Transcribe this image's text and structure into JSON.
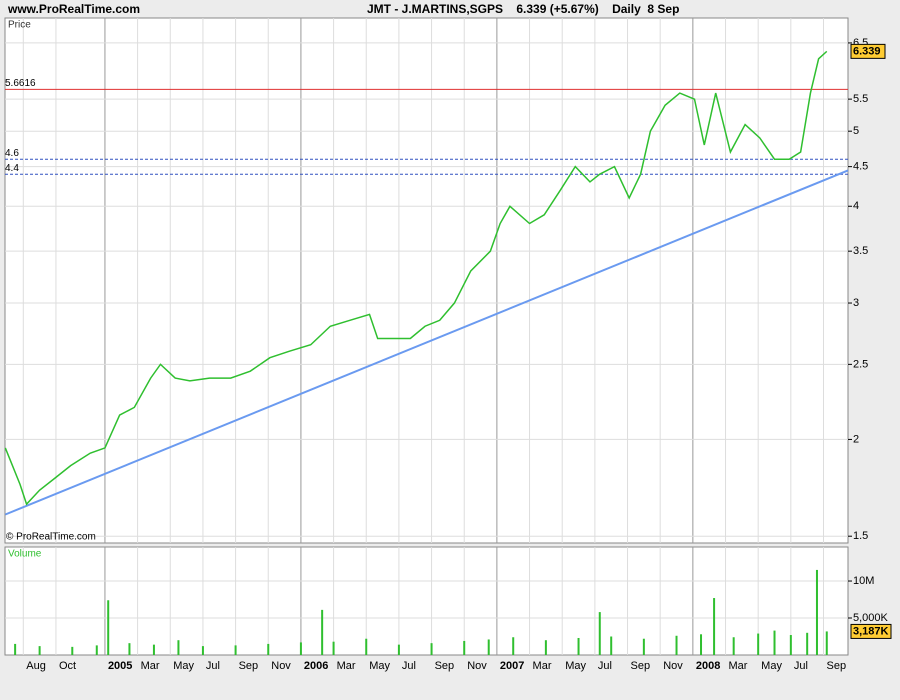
{
  "header": {
    "site": "www.ProRealTime.com",
    "title": "JMT - J.MARTINS,SGPS    6.339 (+5.67%)    Daily  8 Sep"
  },
  "chart_data": [
    {
      "type": "line",
      "panel_label": "Price",
      "copyright": "© ProRealTime.com",
      "log_scale": true,
      "grid": true,
      "color": "#2fbf2f",
      "x": [
        -6.1,
        -5.2,
        -4.8,
        -4,
        -3.1,
        -2.1,
        -0.9,
        0,
        0.9,
        1.8,
        2.8,
        3.4,
        4.3,
        5.2,
        6.4,
        7.7,
        8.9,
        10.1,
        11.3,
        12.6,
        13.8,
        15,
        16.2,
        16.7,
        17.8,
        18.7,
        19.6,
        20.5,
        21.4,
        22.4,
        23.6,
        24.2,
        24.8,
        26,
        26.9,
        27.9,
        28.8,
        29.7,
        30.3,
        31.2,
        32.1,
        32.8,
        33.4,
        34.3,
        35.2,
        36.1,
        36.7,
        37.4,
        38.3,
        39.2,
        40.1,
        41,
        41.9,
        42.6,
        43.2,
        43.7,
        44.2
      ],
      "values": [
        1.95,
        1.75,
        1.65,
        1.72,
        1.78,
        1.85,
        1.92,
        1.95,
        2.15,
        2.2,
        2.4,
        2.5,
        2.4,
        2.38,
        2.4,
        2.4,
        2.45,
        2.55,
        2.6,
        2.65,
        2.8,
        2.85,
        2.9,
        2.7,
        2.7,
        2.7,
        2.8,
        2.85,
        3.0,
        3.3,
        3.5,
        3.8,
        4.0,
        3.8,
        3.9,
        4.2,
        4.5,
        4.3,
        4.4,
        4.5,
        4.1,
        4.4,
        5.0,
        5.4,
        5.6,
        5.5,
        4.8,
        5.6,
        4.7,
        5.1,
        4.9,
        4.6,
        4.6,
        4.7,
        5.6,
        6.2,
        6.339
      ],
      "xlim": [
        -6.12,
        45.5
      ],
      "xticks": [
        {
          "value": -5,
          "label": "Aug"
        },
        {
          "value": -3,
          "label": "Oct"
        },
        {
          "value": 0,
          "label": "2005"
        },
        {
          "value": 2,
          "label": "Mar"
        },
        {
          "value": 4,
          "label": "May"
        },
        {
          "value": 6,
          "label": "Jul"
        },
        {
          "value": 8,
          "label": "Sep"
        },
        {
          "value": 10,
          "label": "Nov"
        },
        {
          "value": 12,
          "label": "2006"
        },
        {
          "value": 14,
          "label": "Mar"
        },
        {
          "value": 16,
          "label": "May"
        },
        {
          "value": 18,
          "label": "Jul"
        },
        {
          "value": 20,
          "label": "Sep"
        },
        {
          "value": 22,
          "label": "Nov"
        },
        {
          "value": 24,
          "label": "2007"
        },
        {
          "value": 26,
          "label": "Mar"
        },
        {
          "value": 28,
          "label": "May"
        },
        {
          "value": 30,
          "label": "Jul"
        },
        {
          "value": 32,
          "label": "Sep"
        },
        {
          "value": 34,
          "label": "Nov"
        },
        {
          "value": 36,
          "label": "2008"
        },
        {
          "value": 38,
          "label": "Mar"
        },
        {
          "value": 40,
          "label": "May"
        },
        {
          "value": 42,
          "label": "Jul"
        },
        {
          "value": 44,
          "label": "Sep"
        }
      ],
      "ylim": [
        1.47,
        7.0
      ],
      "yticks": [
        1.5,
        2,
        2.5,
        3,
        3.5,
        4,
        4.5,
        5,
        5.5,
        6.5
      ],
      "levels": [
        {
          "value": 5.6616,
          "color": "#e03030",
          "dashed": false
        },
        {
          "value": 4.6,
          "color": "#3050c0",
          "dashed": true
        },
        {
          "value": 4.4,
          "color": "#3050c0",
          "dashed": true
        }
      ],
      "trendline": {
        "x": [
          -6.1,
          45.5
        ],
        "values": [
          1.6,
          4.45
        ],
        "color": "#6a9af0"
      }
    },
    {
      "type": "bar",
      "panel_label": "Volume",
      "color": "#2fbf2f",
      "x": [
        -5.5,
        -4,
        -2,
        -0.5,
        0.2,
        1.5,
        3,
        4.5,
        6,
        8,
        10,
        12,
        13.3,
        14,
        16,
        18,
        20,
        22,
        23.5,
        25,
        27,
        29,
        30.3,
        31,
        33,
        35,
        36.5,
        37.3,
        38.5,
        40,
        41,
        42,
        43,
        43.6,
        44.2
      ],
      "values": [
        1500000,
        1200000,
        1100000,
        1300000,
        7400000,
        1600000,
        1400000,
        2000000,
        1200000,
        1300000,
        1500000,
        1700000,
        6100000,
        1800000,
        2200000,
        1400000,
        1600000,
        1900000,
        2100000,
        2400000,
        2000000,
        2300000,
        5800000,
        2500000,
        2200000,
        2600000,
        2800000,
        7700000,
        2400000,
        2900000,
        3300000,
        2700000,
        3000000,
        11500000,
        3187000
      ],
      "value_labels": [
        null,
        null,
        null,
        null,
        null,
        null,
        null,
        null,
        null,
        null,
        null,
        null,
        null,
        null,
        null,
        null,
        null,
        null,
        null,
        null,
        null,
        null,
        null,
        null,
        null,
        null,
        null,
        null,
        null,
        null,
        null,
        null,
        null,
        null,
        "3,187K"
      ],
      "xlim": [
        -6.12,
        45.5
      ],
      "ylim": [
        0,
        14600000
      ],
      "yticks": [
        {
          "value": 5000000,
          "label": "5,000K"
        },
        {
          "value": 10000000,
          "label": "10M"
        }
      ]
    }
  ]
}
